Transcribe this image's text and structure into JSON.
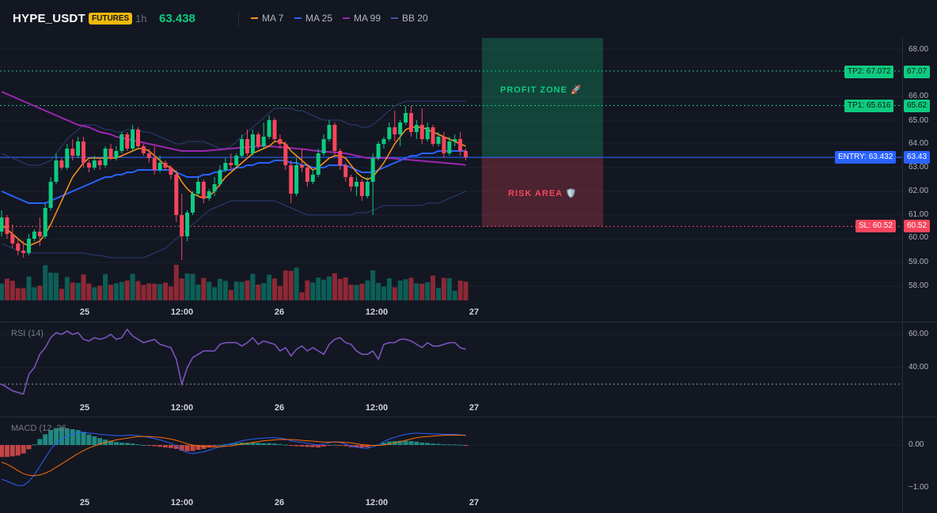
{
  "header": {
    "symbol": "HYPE_USDT",
    "badge": "FUTURES",
    "timeframe": "1h",
    "price": "63.438",
    "legend": [
      {
        "label": "MA 7",
        "color": "#f7931a"
      },
      {
        "label": "MA 25",
        "color": "#2962ff"
      },
      {
        "label": "MA 99",
        "color": "#9c27b0"
      },
      {
        "label": "BB 20",
        "color": "#3d5a9e"
      }
    ]
  },
  "colors": {
    "up": "#089981",
    "down": "#f23645",
    "background": "#131722",
    "tp": "#0ecb81",
    "entry": "#2962ff",
    "sl": "#f6465d"
  },
  "price_pane": {
    "y_axis": [
      "68.00",
      "66.00",
      "65.00",
      "64.00",
      "63.00",
      "62.00",
      "61.00",
      "60.00",
      "59.00",
      "58.00"
    ],
    "levels": {
      "tp2": {
        "label": "TP2: 67.072",
        "axis": "67.07",
        "value": 67.072
      },
      "tp1": {
        "label": "TP1: 65.616",
        "axis": "65.62",
        "value": 65.616
      },
      "entry": {
        "label": "ENTRY: 63.432",
        "axis": "63.43",
        "value": 63.432
      },
      "sl": {
        "label": "SL: 60.52",
        "axis": "60.52",
        "value": 60.52
      }
    },
    "profit_zone_label": "PROFIT ZONE 🚀",
    "risk_area_label": "RISK AREA 🛡️"
  },
  "x_axis": [
    "25",
    "12:00",
    "26",
    "12:00",
    "27"
  ],
  "rsi_pane": {
    "title": "RSI (14)",
    "y_axis": [
      "60.00",
      "40.00"
    ]
  },
  "macd_pane": {
    "title": "MACD (12, 26",
    "y_axis": [
      "0.00",
      "−1.00"
    ]
  },
  "chart_data": {
    "type": "candlestick",
    "candles": [
      [
        60.3,
        61.2,
        60.1,
        60.9
      ],
      [
        60.9,
        61.0,
        60.0,
        60.2
      ],
      [
        60.2,
        60.6,
        59.6,
        59.8
      ],
      [
        59.8,
        60.0,
        59.3,
        59.5
      ],
      [
        59.5,
        59.9,
        59.2,
        59.4
      ],
      [
        59.4,
        60.2,
        59.3,
        60.0
      ],
      [
        60.0,
        60.4,
        59.9,
        60.3
      ],
      [
        60.3,
        60.9,
        59.7,
        60.1
      ],
      [
        60.1,
        61.5,
        60.0,
        61.3
      ],
      [
        61.3,
        62.6,
        61.2,
        62.4
      ],
      [
        62.4,
        63.6,
        62.3,
        63.3
      ],
      [
        63.3,
        63.4,
        62.9,
        63.0
      ],
      [
        63.0,
        64.0,
        62.9,
        63.8
      ],
      [
        63.8,
        64.2,
        63.3,
        63.5
      ],
      [
        63.5,
        64.3,
        63.4,
        64.1
      ],
      [
        64.1,
        64.3,
        63.0,
        63.2
      ],
      [
        63.2,
        63.3,
        62.8,
        63.0
      ],
      [
        63.0,
        63.5,
        62.9,
        63.3
      ],
      [
        63.3,
        63.4,
        62.9,
        63.1
      ],
      [
        63.1,
        63.9,
        63.0,
        63.8
      ],
      [
        63.8,
        64.0,
        63.3,
        63.4
      ],
      [
        63.4,
        63.9,
        63.3,
        63.7
      ],
      [
        63.7,
        64.5,
        63.6,
        64.4
      ],
      [
        64.4,
        64.5,
        63.7,
        63.8
      ],
      [
        63.8,
        64.8,
        63.7,
        64.6
      ],
      [
        64.6,
        64.7,
        63.8,
        63.9
      ],
      [
        63.9,
        64.0,
        63.5,
        63.6
      ],
      [
        63.6,
        63.8,
        63.2,
        63.4
      ],
      [
        63.4,
        63.9,
        62.7,
        62.9
      ],
      [
        62.9,
        63.5,
        62.8,
        63.2
      ],
      [
        63.2,
        63.3,
        62.9,
        63.0
      ],
      [
        63.0,
        63.1,
        62.5,
        62.7
      ],
      [
        62.7,
        62.9,
        60.7,
        61.0
      ],
      [
        61.0,
        61.9,
        59.1,
        60.1
      ],
      [
        60.1,
        61.2,
        59.9,
        61.1
      ],
      [
        61.1,
        62.0,
        61.0,
        61.9
      ],
      [
        61.9,
        62.6,
        61.8,
        62.4
      ],
      [
        62.4,
        62.5,
        61.5,
        61.7
      ],
      [
        61.7,
        62.1,
        61.6,
        62.0
      ],
      [
        62.0,
        62.6,
        61.8,
        62.3
      ],
      [
        62.3,
        63.1,
        62.2,
        62.9
      ],
      [
        62.9,
        63.4,
        62.8,
        63.2
      ],
      [
        63.2,
        63.6,
        62.9,
        63.1
      ],
      [
        63.1,
        63.6,
        63.0,
        63.5
      ],
      [
        63.5,
        64.4,
        63.4,
        64.2
      ],
      [
        64.2,
        64.6,
        63.5,
        63.6
      ],
      [
        63.6,
        64.6,
        63.5,
        64.4
      ],
      [
        64.4,
        64.5,
        63.8,
        63.9
      ],
      [
        63.9,
        64.9,
        63.8,
        64.3
      ],
      [
        64.3,
        65.2,
        64.2,
        65.0
      ],
      [
        65.0,
        65.1,
        64.1,
        64.2
      ],
      [
        64.2,
        64.4,
        63.8,
        64.0
      ],
      [
        64.0,
        64.1,
        62.9,
        63.1
      ],
      [
        63.1,
        63.3,
        61.5,
        61.9
      ],
      [
        61.9,
        63.4,
        61.8,
        63.1
      ],
      [
        63.1,
        63.8,
        62.8,
        63.0
      ],
      [
        63.0,
        63.1,
        62.2,
        62.4
      ],
      [
        62.4,
        62.9,
        62.3,
        62.7
      ],
      [
        62.7,
        63.8,
        62.6,
        63.6
      ],
      [
        63.6,
        64.4,
        63.5,
        64.2
      ],
      [
        64.2,
        65.0,
        64.1,
        64.8
      ],
      [
        64.8,
        64.9,
        63.5,
        63.7
      ],
      [
        63.7,
        63.8,
        62.9,
        63.1
      ],
      [
        63.1,
        63.2,
        62.4,
        62.6
      ],
      [
        62.6,
        62.7,
        62.0,
        62.2
      ],
      [
        62.2,
        62.6,
        61.8,
        62.4
      ],
      [
        62.4,
        62.5,
        61.6,
        61.8
      ],
      [
        61.8,
        62.6,
        61.7,
        62.4
      ],
      [
        62.4,
        63.6,
        61.0,
        63.4
      ],
      [
        63.4,
        64.1,
        63.3,
        64.0
      ],
      [
        64.0,
        64.3,
        63.8,
        64.2
      ],
      [
        64.2,
        64.9,
        64.1,
        64.7
      ],
      [
        64.7,
        65.4,
        64.1,
        64.4
      ],
      [
        64.4,
        65.0,
        63.9,
        64.9
      ],
      [
        64.9,
        65.6,
        64.8,
        65.3
      ],
      [
        65.3,
        65.6,
        64.3,
        64.5
      ],
      [
        64.5,
        65.0,
        64.2,
        64.8
      ],
      [
        64.8,
        65.5,
        64.0,
        64.2
      ],
      [
        64.2,
        64.9,
        64.1,
        64.7
      ],
      [
        64.7,
        64.8,
        63.9,
        64.0
      ],
      [
        64.0,
        64.5,
        63.9,
        64.3
      ],
      [
        64.3,
        64.5,
        63.4,
        63.6
      ],
      [
        63.6,
        64.3,
        63.5,
        64.1
      ],
      [
        64.1,
        64.4,
        63.9,
        64.2
      ],
      [
        64.2,
        64.5,
        63.5,
        63.7
      ],
      [
        63.7,
        63.8,
        63.3,
        63.44
      ]
    ],
    "ma7": [
      60.6,
      60.4,
      60.2,
      60.0,
      59.8,
      59.7,
      59.8,
      59.9,
      60.2,
      60.6,
      61.1,
      61.6,
      62.1,
      62.6,
      62.9,
      63.2,
      63.4,
      63.4,
      63.4,
      63.4,
      63.4,
      63.4,
      63.5,
      63.6,
      63.7,
      63.8,
      63.8,
      63.7,
      63.5,
      63.3,
      63.1,
      63.0,
      62.8,
      62.4,
      62.1,
      61.9,
      61.8,
      61.7,
      61.8,
      62.0,
      62.3,
      62.6,
      62.8,
      63.0,
      63.2,
      63.4,
      63.6,
      63.7,
      63.8,
      63.9,
      64.1,
      64.1,
      64.0,
      63.7,
      63.5,
      63.3,
      63.1,
      62.9,
      63.0,
      63.2,
      63.4,
      63.5,
      63.5,
      63.4,
      63.1,
      62.8,
      62.6,
      62.5,
      62.6,
      62.9,
      63.2,
      63.6,
      64.0,
      64.3,
      64.6,
      64.7,
      64.7,
      64.7,
      64.6,
      64.5,
      64.4,
      64.3,
      64.2,
      64.1,
      64.0,
      63.9
    ],
    "ma25": [
      62.0,
      61.9,
      61.8,
      61.7,
      61.6,
      61.5,
      61.5,
      61.5,
      61.5,
      61.6,
      61.7,
      61.8,
      61.9,
      62.0,
      62.1,
      62.2,
      62.3,
      62.4,
      62.5,
      62.6,
      62.6,
      62.7,
      62.7,
      62.8,
      62.8,
      62.9,
      62.9,
      62.9,
      62.9,
      62.9,
      62.9,
      62.9,
      62.8,
      62.7,
      62.6,
      62.6,
      62.6,
      62.7,
      62.7,
      62.8,
      62.8,
      62.9,
      62.9,
      63.0,
      63.0,
      63.1,
      63.1,
      63.2,
      63.2,
      63.2,
      63.3,
      63.3,
      63.3,
      63.2,
      63.2,
      63.1,
      63.1,
      63.0,
      63.0,
      63.0,
      63.1,
      63.1,
      63.1,
      63.1,
      63.0,
      62.9,
      62.8,
      62.8,
      62.8,
      62.9,
      63.0,
      63.1,
      63.2,
      63.3,
      63.4,
      63.5,
      63.5,
      63.6,
      63.6,
      63.6,
      63.7,
      63.7,
      63.7,
      63.7,
      63.7,
      63.7
    ],
    "ma99": [
      66.2,
      66.1,
      66.0,
      65.9,
      65.8,
      65.7,
      65.6,
      65.5,
      65.4,
      65.3,
      65.2,
      65.1,
      65.0,
      64.9,
      64.8,
      64.75,
      64.7,
      64.6,
      64.5,
      64.45,
      64.4,
      64.3,
      64.25,
      64.2,
      64.15,
      64.1,
      64.05,
      64.0,
      63.95,
      63.9,
      63.85,
      63.8,
      63.75,
      63.7,
      63.7,
      63.7,
      63.7,
      63.7,
      63.72,
      63.74,
      63.76,
      63.78,
      63.8,
      63.82,
      63.84,
      63.86,
      63.88,
      63.9,
      63.92,
      63.9,
      63.88,
      63.86,
      63.84,
      63.82,
      63.8,
      63.78,
      63.76,
      63.72,
      63.7,
      63.68,
      63.66,
      63.64,
      63.62,
      63.6,
      63.55,
      63.5,
      63.45,
      63.4,
      63.4,
      63.4,
      63.4,
      63.4,
      63.38,
      63.36,
      63.34,
      63.32,
      63.3,
      63.28,
      63.26,
      63.24,
      63.22,
      63.2,
      63.18,
      63.16,
      63.14,
      63.1
    ],
    "bb_upper": [
      63.6,
      63.5,
      63.4,
      63.3,
      63.2,
      63.1,
      63.1,
      63.1,
      63.2,
      63.3,
      63.6,
      63.9,
      64.2,
      64.4,
      64.6,
      64.8,
      64.8,
      64.8,
      64.7,
      64.6,
      64.6,
      64.5,
      64.5,
      64.6,
      64.6,
      64.6,
      64.5,
      64.5,
      64.4,
      64.3,
      64.2,
      64.1,
      64.0,
      64.0,
      64.1,
      64.1,
      64.1,
      64.1,
      64.0,
      63.9,
      63.8,
      63.8,
      63.9,
      64.1,
      64.3,
      64.5,
      64.7,
      64.9,
      65.1,
      65.3,
      65.5,
      65.5,
      65.5,
      65.5,
      65.4,
      65.4,
      65.3,
      65.2,
      65.1,
      65.0,
      65.0,
      65.0,
      65.0,
      64.9,
      64.8,
      64.8,
      64.7,
      64.7,
      64.8,
      65.0,
      65.2,
      65.4,
      65.6,
      65.7,
      65.8,
      65.8,
      65.8,
      65.8,
      65.8,
      65.8,
      65.8,
      65.8,
      65.8,
      65.8,
      65.8,
      65.8
    ],
    "bb_lower": [
      59.8,
      59.7,
      59.6,
      59.5,
      59.4,
      59.4,
      59.4,
      59.4,
      59.4,
      59.4,
      59.4,
      59.4,
      59.4,
      59.4,
      59.4,
      59.4,
      59.35,
      59.3,
      59.3,
      59.25,
      59.2,
      59.2,
      59.2,
      59.2,
      59.2,
      59.2,
      59.2,
      59.3,
      59.4,
      59.5,
      59.6,
      59.8,
      60.0,
      60.2,
      60.4,
      60.6,
      60.8,
      61.0,
      61.2,
      61.3,
      61.4,
      61.5,
      61.6,
      61.6,
      61.6,
      61.6,
      61.6,
      61.6,
      61.6,
      61.6,
      61.6,
      61.5,
      61.4,
      61.3,
      61.2,
      61.1,
      61.0,
      61.0,
      61.0,
      61.0,
      61.0,
      61.0,
      61.0,
      61.0,
      61.0,
      61.1,
      61.1,
      61.1,
      61.2,
      61.3,
      61.4,
      61.4,
      61.4,
      61.4,
      61.4,
      61.4,
      61.4,
      61.4,
      61.5,
      61.5,
      61.5,
      61.6,
      61.7,
      61.8,
      61.9,
      62.0
    ],
    "rsi": [
      30,
      28,
      26,
      25,
      24,
      36,
      40,
      48,
      52,
      58,
      61,
      60,
      62,
      60,
      61,
      57,
      56,
      58,
      57,
      58,
      60,
      57,
      58,
      63,
      59,
      57,
      55,
      56,
      57,
      54,
      53,
      52,
      45,
      30,
      40,
      46,
      48,
      50,
      50,
      50,
      54,
      55,
      55,
      55,
      53,
      55,
      58,
      54,
      56,
      55,
      54,
      50,
      52,
      47,
      51,
      53,
      50,
      52,
      50,
      48,
      54,
      57,
      58,
      55,
      54,
      50,
      48,
      48,
      50,
      45,
      54,
      55,
      55,
      57,
      57,
      56,
      54,
      52,
      55,
      53,
      53,
      54,
      55,
      55,
      52,
      51
    ],
    "macd": [
      -0.8,
      -0.85,
      -0.9,
      -0.95,
      -0.95,
      -0.85,
      -0.7,
      -0.5,
      -0.3,
      -0.1,
      0.05,
      0.15,
      0.2,
      0.25,
      0.3,
      0.3,
      0.28,
      0.27,
      0.25,
      0.24,
      0.23,
      0.22,
      0.22,
      0.23,
      0.23,
      0.22,
      0.2,
      0.18,
      0.15,
      0.12,
      0.08,
      0.04,
      -0.02,
      -0.12,
      -0.18,
      -0.2,
      -0.18,
      -0.16,
      -0.12,
      -0.08,
      -0.04,
      0.0,
      0.03,
      0.06,
      0.1,
      0.12,
      0.14,
      0.15,
      0.16,
      0.17,
      0.17,
      0.16,
      0.14,
      0.1,
      0.08,
      0.06,
      0.04,
      0.02,
      0.0,
      0.02,
      0.05,
      0.08,
      0.06,
      0.02,
      -0.02,
      -0.05,
      -0.07,
      -0.08,
      -0.04,
      0.0,
      0.08,
      0.14,
      0.18,
      0.22,
      0.25,
      0.27,
      0.28,
      0.27,
      0.27,
      0.26,
      0.26,
      0.25,
      0.25,
      0.25,
      0.24,
      0.22
    ],
    "macd_signal": [
      -0.4,
      -0.45,
      -0.52,
      -0.6,
      -0.67,
      -0.71,
      -0.72,
      -0.7,
      -0.66,
      -0.6,
      -0.52,
      -0.44,
      -0.36,
      -0.28,
      -0.2,
      -0.13,
      -0.07,
      -0.02,
      0.02,
      0.06,
      0.09,
      0.12,
      0.14,
      0.16,
      0.18,
      0.2,
      0.2,
      0.2,
      0.19,
      0.18,
      0.16,
      0.14,
      0.11,
      0.07,
      0.03,
      0.0,
      -0.02,
      -0.03,
      -0.04,
      -0.04,
      -0.04,
      -0.03,
      -0.02,
      0.0,
      0.02,
      0.04,
      0.06,
      0.08,
      0.1,
      0.11,
      0.12,
      0.13,
      0.13,
      0.13,
      0.12,
      0.11,
      0.1,
      0.09,
      0.08,
      0.07,
      0.07,
      0.07,
      0.07,
      0.06,
      0.05,
      0.03,
      0.01,
      0.0,
      -0.01,
      -0.01,
      0.0,
      0.02,
      0.05,
      0.08,
      0.11,
      0.14,
      0.17,
      0.19,
      0.2,
      0.21,
      0.22,
      0.23,
      0.23,
      0.23,
      0.23,
      0.23
    ],
    "volume_scale_note": "volume and histogram drawn proportionally"
  }
}
